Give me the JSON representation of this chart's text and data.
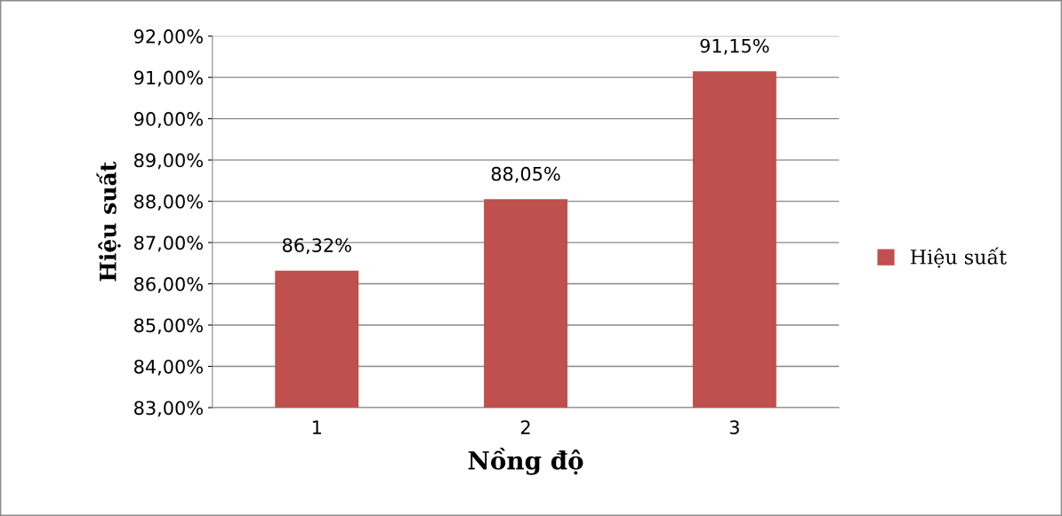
{
  "chart_data": {
    "type": "bar",
    "xlabel": "Nồng độ",
    "ylabel": "Hiệu suất",
    "categories": [
      "1",
      "2",
      "3"
    ],
    "series": [
      {
        "name": "Hiệu suất",
        "color": "#c0504d",
        "values": [
          86.32,
          88.05,
          91.15
        ],
        "value_labels": [
          "86,32%",
          "88,05%",
          "91,15%"
        ]
      }
    ],
    "ylim": [
      83,
      92
    ],
    "yticks": [
      {
        "value": 83,
        "label": "83,00%"
      },
      {
        "value": 84,
        "label": "84,00%"
      },
      {
        "value": 85,
        "label": "85,00%"
      },
      {
        "value": 86,
        "label": "86,00%"
      },
      {
        "value": 87,
        "label": "87,00%"
      },
      {
        "value": 88,
        "label": "88,00%"
      },
      {
        "value": 89,
        "label": "89,00%"
      },
      {
        "value": 90,
        "label": "90,00%"
      },
      {
        "value": 91,
        "label": "91,00%"
      },
      {
        "value": 92,
        "label": "92,00%"
      }
    ],
    "grid": "y",
    "legend": "right"
  }
}
